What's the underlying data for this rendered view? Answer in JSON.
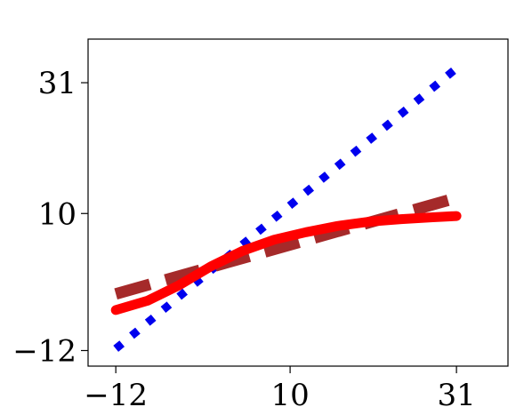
{
  "chart_data": {
    "type": "line",
    "title": "",
    "xlabel": "",
    "ylabel": "",
    "xlim": [
      -15.5,
      37.5
    ],
    "ylim": [
      -14.5,
      38.0
    ],
    "xticks": [
      -12,
      10,
      31
    ],
    "yticks": [
      -12,
      10,
      31
    ],
    "xtick_labels": [
      "−12",
      "10",
      "31"
    ],
    "ytick_labels": [
      "−12",
      "10",
      "31"
    ],
    "grid": false,
    "legend": "none",
    "series": [
      {
        "style": "dotted",
        "color": "#0000ee",
        "x": [
          -12,
          31
        ],
        "y": [
          -11.7,
          33.3
        ]
      },
      {
        "style": "dashed",
        "color": "#a52a2a",
        "x": [
          -12,
          31
        ],
        "y": [
          -2.9,
          12.5
        ]
      },
      {
        "style": "solid",
        "color": "#ff0000",
        "x": [
          -12,
          -8,
          -4,
          0,
          4,
          8,
          12,
          16,
          20,
          24,
          28,
          31
        ],
        "y": [
          -5.5,
          -4.0,
          -1.5,
          1.5,
          4.0,
          5.8,
          7.0,
          8.0,
          8.7,
          9.1,
          9.4,
          9.6
        ]
      }
    ]
  }
}
